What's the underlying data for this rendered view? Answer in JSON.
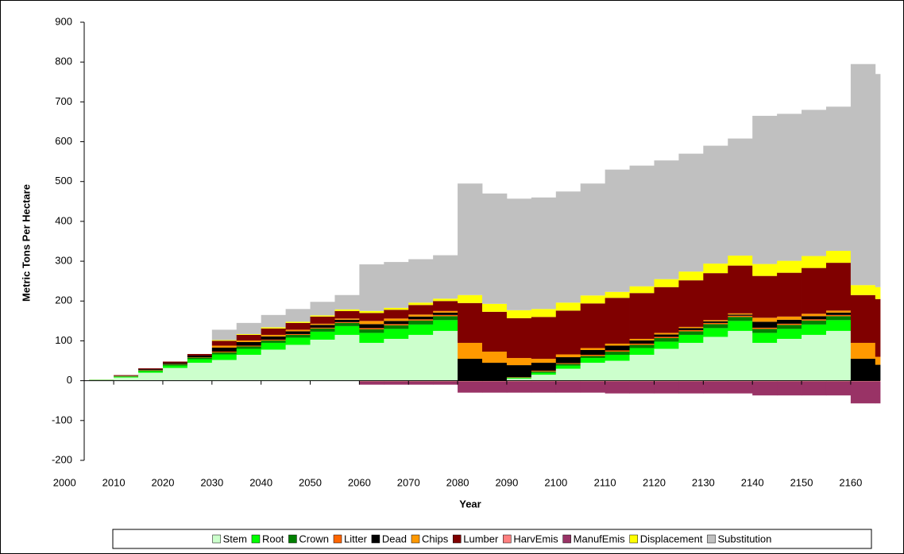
{
  "chart_data": {
    "type": "stacked_step_area",
    "y_label": "Metric Tons Per Hectare",
    "x_label": "Year",
    "x": [
      2005,
      2010,
      2015,
      2020,
      2025,
      2030,
      2035,
      2040,
      2045,
      2050,
      2055,
      2060,
      2065,
      2070,
      2075,
      2080,
      2085,
      2090,
      2095,
      2100,
      2105,
      2110,
      2115,
      2120,
      2125,
      2130,
      2135,
      2140,
      2145,
      2150,
      2155,
      2160,
      2165
    ],
    "xlim": [
      2004,
      2166
    ],
    "xticks": [
      2000,
      2010,
      2020,
      2030,
      2040,
      2050,
      2060,
      2070,
      2080,
      2090,
      2100,
      2110,
      2120,
      2130,
      2140,
      2150,
      2160
    ],
    "ylim": [
      -200,
      900
    ],
    "yticks": [
      -200,
      -100,
      0,
      100,
      200,
      300,
      400,
      500,
      600,
      700,
      800,
      900
    ],
    "legend": "bottom",
    "series": [
      {
        "name": "Stem",
        "color": "#ccffcc",
        "values": [
          2,
          8,
          20,
          32,
          45,
          52,
          65,
          78,
          90,
          103,
          115,
          95,
          105,
          115,
          125,
          0,
          0,
          5,
          15,
          30,
          45,
          50,
          65,
          80,
          95,
          110,
          125,
          95,
          105,
          115,
          125,
          0,
          0
        ]
      },
      {
        "name": "Root",
        "color": "#00ff00",
        "values": [
          0.5,
          2,
          4,
          6,
          9,
          14,
          15,
          17,
          18,
          20,
          22,
          25,
          25,
          26,
          27,
          0,
          0,
          2,
          5,
          8,
          12,
          15,
          17,
          18,
          20,
          22,
          25,
          25,
          25,
          26,
          27,
          0,
          0
        ]
      },
      {
        "name": "Crown",
        "color": "#008000",
        "values": [
          0.3,
          1,
          2,
          3,
          4,
          5,
          6,
          6,
          7,
          8,
          8,
          9,
          9,
          10,
          10,
          0,
          0,
          1,
          3,
          4,
          5,
          8,
          8,
          9,
          9,
          10,
          10,
          10,
          10,
          10,
          10,
          0,
          0
        ]
      },
      {
        "name": "Litter",
        "color": "#ff6600",
        "values": [
          0.2,
          1,
          1,
          1,
          1,
          2,
          2,
          2,
          2,
          2,
          2,
          3,
          3,
          3,
          3,
          0,
          0,
          1,
          2,
          2,
          3,
          3,
          3,
          3,
          3,
          3,
          3,
          3,
          3,
          3,
          3,
          0,
          0
        ]
      },
      {
        "name": "Dead",
        "color": "#000000",
        "values": [
          0,
          1,
          2,
          3,
          4,
          10,
          9,
          8,
          7,
          7,
          6,
          10,
          8,
          7,
          6,
          55,
          45,
          30,
          20,
          15,
          12,
          12,
          8,
          6,
          5,
          4,
          3,
          15,
          10,
          8,
          6,
          55,
          40
        ]
      },
      {
        "name": "Chips",
        "color": "#ff9900",
        "values": [
          0,
          0,
          0,
          0,
          0,
          5,
          4,
          4,
          4,
          3,
          3,
          8,
          6,
          5,
          4,
          40,
          28,
          18,
          10,
          7,
          5,
          5,
          4,
          4,
          3,
          3,
          3,
          10,
          8,
          6,
          5,
          40,
          20
        ]
      },
      {
        "name": "Lumber",
        "color": "#800000",
        "values": [
          0,
          1,
          2,
          3,
          4,
          12,
          14,
          16,
          17,
          18,
          19,
          20,
          22,
          24,
          25,
          100,
          100,
          100,
          105,
          110,
          112,
          115,
          115,
          115,
          117,
          118,
          120,
          105,
          110,
          115,
          120,
          120,
          145
        ]
      },
      {
        "name": "HarvEmis",
        "color": "#ff8080",
        "values": [
          0,
          0,
          0,
          0,
          0,
          0,
          0,
          0,
          0,
          0,
          0,
          -2,
          -2,
          -2,
          -2,
          -2,
          -2,
          -2,
          -2,
          -2,
          -2,
          -2,
          -2,
          -2,
          -2,
          -2,
          -2,
          -2,
          -2,
          -2,
          -2,
          -2,
          -2
        ]
      },
      {
        "name": "ManufEmis",
        "color": "#993366",
        "values": [
          0,
          0,
          0,
          0,
          0,
          0,
          0,
          0,
          0,
          0,
          0,
          -8,
          -8,
          -8,
          -8,
          -28,
          -28,
          -28,
          -28,
          -28,
          -28,
          -30,
          -30,
          -30,
          -30,
          -30,
          -30,
          -35,
          -35,
          -35,
          -35,
          -55,
          -55
        ]
      },
      {
        "name": "Displacement",
        "color": "#ffff00",
        "values": [
          0,
          0,
          0,
          0,
          0,
          2,
          2,
          3,
          3,
          3,
          4,
          5,
          5,
          6,
          6,
          20,
          20,
          20,
          20,
          20,
          20,
          15,
          17,
          20,
          22,
          24,
          25,
          30,
          30,
          30,
          30,
          25,
          30
        ]
      },
      {
        "name": "Substitution",
        "color": "#c0c0c0",
        "values": [
          0,
          0,
          0,
          0,
          0,
          26,
          28,
          31,
          32,
          34,
          36,
          117,
          115,
          109,
          109,
          280,
          277,
          280,
          280,
          279,
          281,
          307,
          303,
          298,
          296,
          296,
          294,
          372,
          369,
          367,
          362,
          555,
          535
        ]
      }
    ]
  }
}
